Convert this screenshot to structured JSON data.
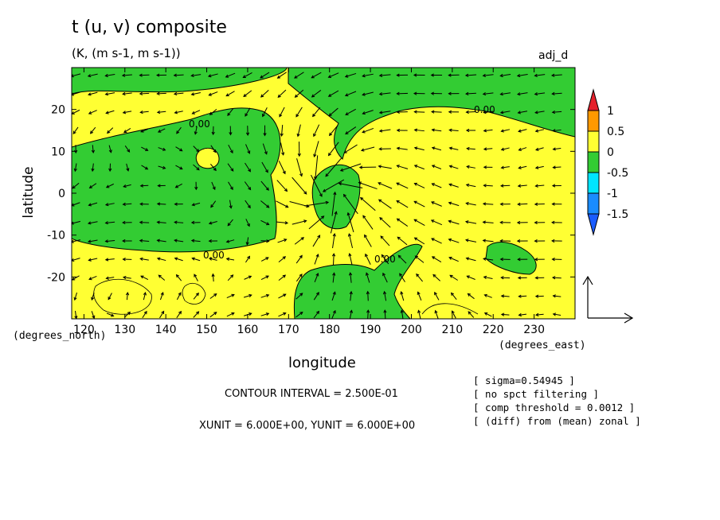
{
  "header": {
    "title": "t (u, v) composite",
    "subtitle": "(K, (m s-1, m s-1))",
    "tag": "adj_d"
  },
  "chart_data": {
    "type": "heatmap",
    "title": "t (u, v) composite",
    "xlabel": "longitude",
    "ylabel": "latitude",
    "x_unit_label": "(degrees_east)",
    "y_unit_label": "(degrees_north)",
    "xlim": [
      117,
      240
    ],
    "ylim": [
      -30,
      30
    ],
    "x_ticks": [
      120,
      130,
      140,
      150,
      160,
      170,
      180,
      190,
      200,
      210,
      220,
      230
    ],
    "y_ticks": [
      -20,
      -10,
      0,
      10,
      20
    ],
    "contour_labels": [
      "0.00",
      "0.00",
      "0.00",
      "0.00",
      "0.00"
    ],
    "colorbar": {
      "labels": [
        "1",
        "0.5",
        "0",
        "-0.5",
        "-1",
        "-1.5"
      ],
      "colors": [
        "#e5202b",
        "#ff9900",
        "#ffff33",
        "#33cc33",
        "#00e5ff",
        "#1a8cff",
        "#1a5cff"
      ]
    },
    "fill_colors": {
      "positive": "#ffff33",
      "negative": "#33cc33"
    },
    "grid": false
  },
  "footer": {
    "contour_interval": "CONTOUR INTERVAL = 2.500E-01",
    "units": "XUNIT = 6.000E+00, YUNIT = 6.000E+00",
    "notes": [
      "[ sigma=0.54945 ]",
      "[ no spct filtering ]",
      "[ comp threshold = 0.0012 ]",
      "[ (diff) from (mean) zonal ]"
    ]
  }
}
